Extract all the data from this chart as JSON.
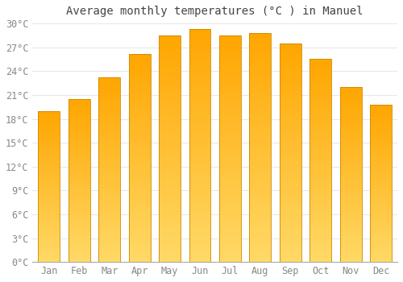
{
  "title": "Average monthly temperatures (°C ) in Manuel",
  "months": [
    "Jan",
    "Feb",
    "Mar",
    "Apr",
    "May",
    "Jun",
    "Jul",
    "Aug",
    "Sep",
    "Oct",
    "Nov",
    "Dec"
  ],
  "temperatures": [
    19.0,
    20.5,
    23.2,
    26.2,
    28.5,
    29.3,
    28.5,
    28.8,
    27.5,
    25.5,
    22.0,
    19.8
  ],
  "bar_color_bottom": "#FFD966",
  "bar_color_top": "#FFA500",
  "bar_edge_color": "#CC8800",
  "ylim": [
    0,
    30
  ],
  "yticks": [
    0,
    3,
    6,
    9,
    12,
    15,
    18,
    21,
    24,
    27,
    30
  ],
  "ytick_labels": [
    "0°C",
    "3°C",
    "6°C",
    "9°C",
    "12°C",
    "15°C",
    "18°C",
    "21°C",
    "24°C",
    "27°C",
    "30°C"
  ],
  "background_color": "#FFFFFF",
  "grid_color": "#E8E8E8",
  "title_fontsize": 10,
  "tick_fontsize": 8.5,
  "tick_color": "#888888"
}
